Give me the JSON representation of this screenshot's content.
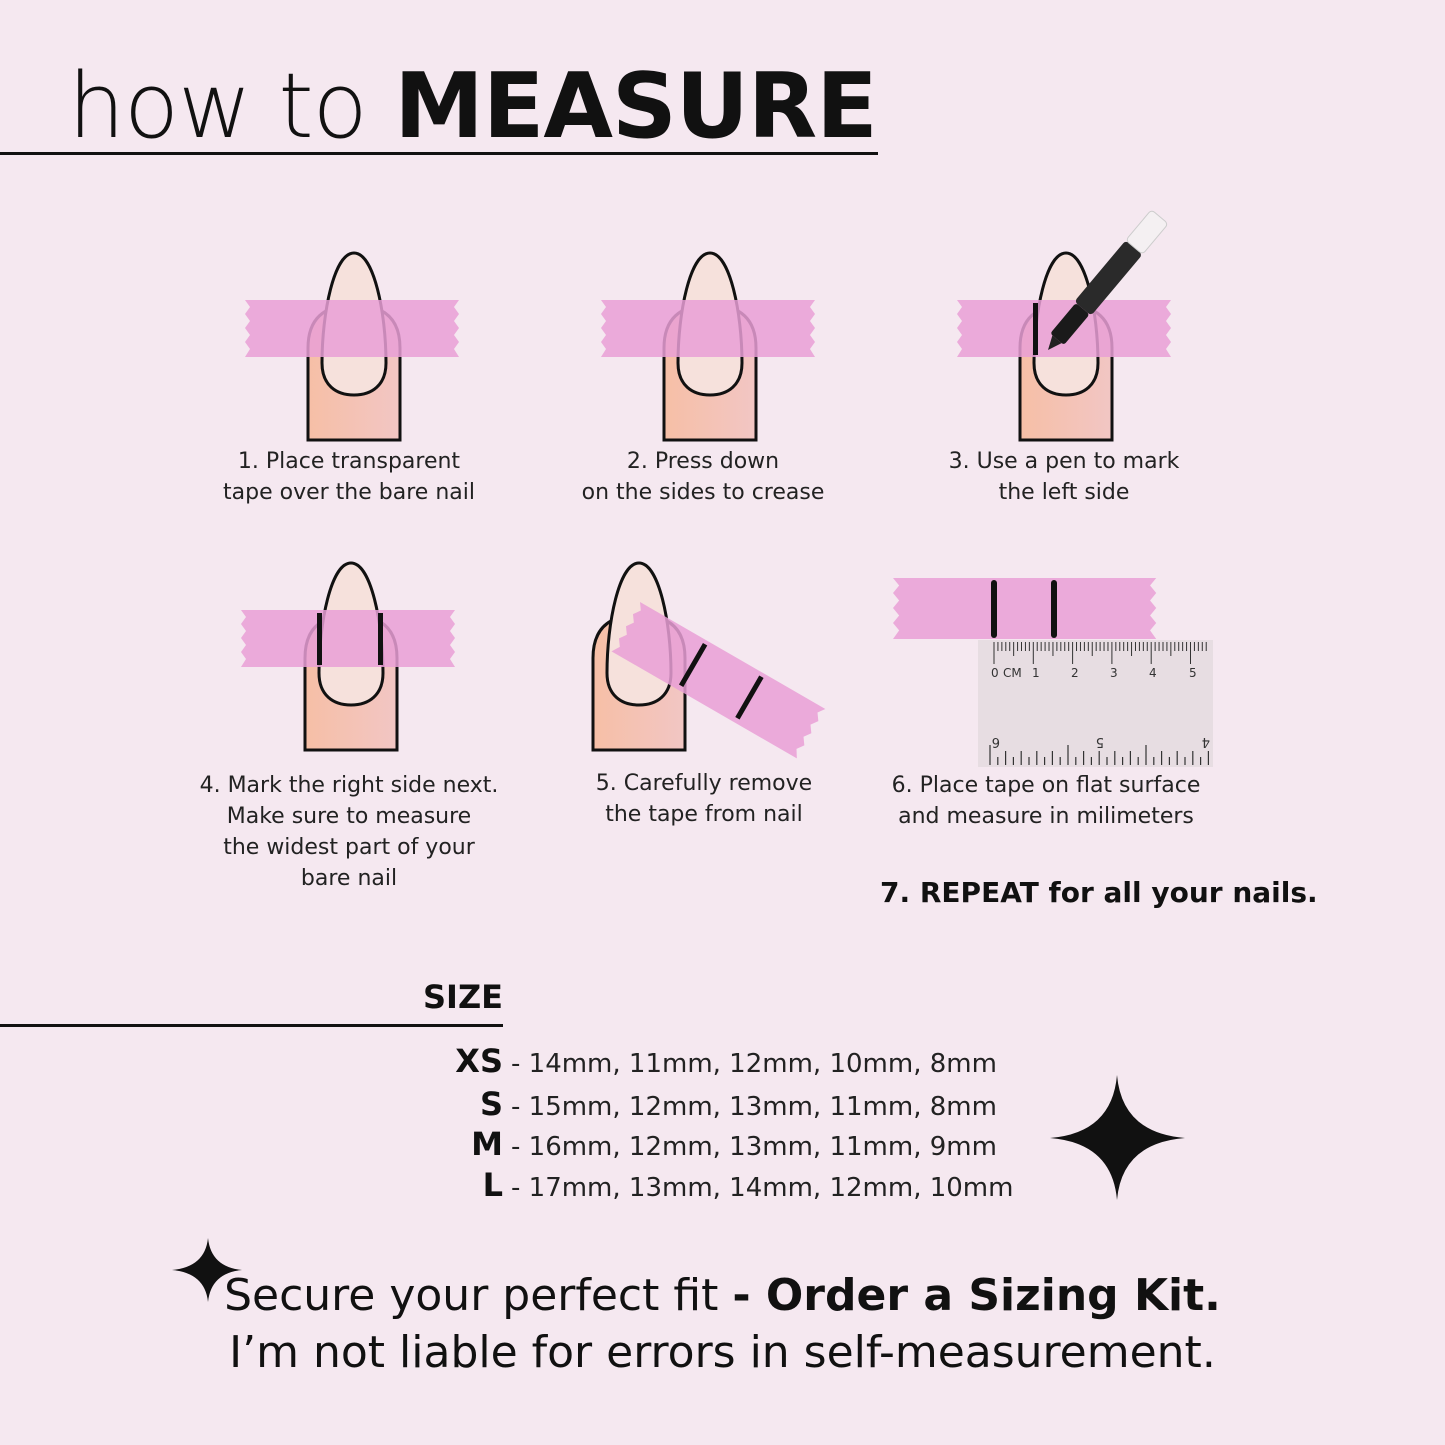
{
  "title": {
    "light": "how to",
    "bold": "MEASURE"
  },
  "steps": [
    {
      "lines": [
        "1. Place transparent",
        "tape over the bare nail"
      ]
    },
    {
      "lines": [
        "2. Press down",
        "on the sides to crease"
      ]
    },
    {
      "lines": [
        "3. Use a pen to mark",
        "the left side"
      ]
    },
    {
      "lines": [
        "4. Mark the right side next.",
        "Make sure to measure",
        "the widest part of your",
        "bare nail"
      ]
    },
    {
      "lines": [
        "5. Carefully remove",
        "the tape from nail"
      ]
    },
    {
      "lines": [
        "6. Place tape on flat surface",
        "and measure in milimeters"
      ]
    }
  ],
  "repeat": "7. REPEAT for all your nails.",
  "ruler": {
    "unit": "CM",
    "top_labels": [
      "0",
      "1",
      "2",
      "3",
      "4",
      "5"
    ],
    "bottom_labels": [
      "6",
      "5",
      "4"
    ]
  },
  "size": {
    "title": "SIZE",
    "rows": [
      {
        "label": "XS",
        "values": "- 14mm, 11mm, 12mm, 10mm, 8mm"
      },
      {
        "label": "S",
        "values": "- 15mm, 12mm, 13mm, 11mm, 8mm"
      },
      {
        "label": "M",
        "values": "- 16mm, 12mm, 13mm, 11mm, 9mm"
      },
      {
        "label": "L",
        "values": "- 17mm, 13mm, 14mm, 12mm, 10mm"
      }
    ]
  },
  "footer": {
    "line1_regular": "Secure your perfect fit ",
    "line1_bold": "- Order a Sizing Kit.",
    "line2": "I’m not liable for errors in self-measurement."
  },
  "colors": {
    "background": "#f5e8f0",
    "tape": "#e99fd6",
    "skin": "#f4c2ae",
    "nail": "#f6e1dc",
    "ink": "#111111"
  }
}
